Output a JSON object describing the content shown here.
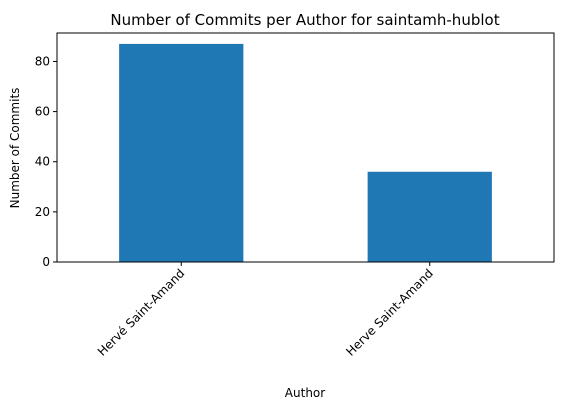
{
  "chart_data": {
    "type": "bar",
    "title": "Number of Commits per Author for saintamh-hublot",
    "xlabel": "Author",
    "ylabel": "Number of Commits",
    "categories": [
      "Hervé Saint-Amand",
      "Herve Saint-Amand"
    ],
    "values": [
      87,
      36
    ],
    "ylim": [
      0,
      91.35
    ],
    "yticks": [
      0,
      20,
      40,
      60,
      80
    ],
    "bar_color": "#1f77b4",
    "grid": false,
    "legend": "none"
  }
}
